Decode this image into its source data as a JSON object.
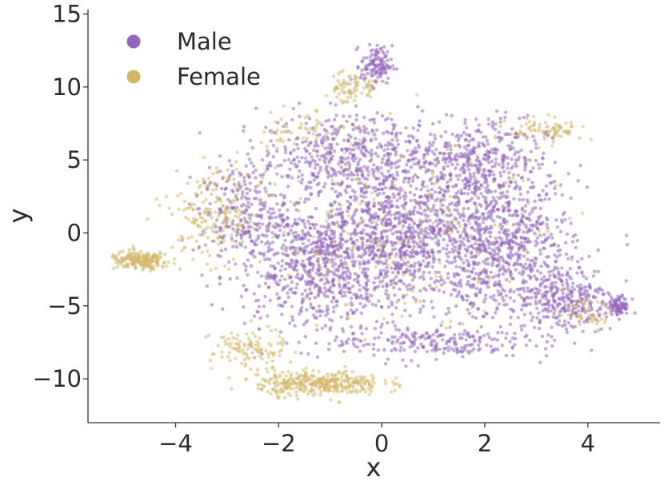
{
  "chart_data": {
    "type": "scatter",
    "title": "",
    "xlabel": "x",
    "ylabel": "y",
    "xlim": [
      -5.7,
      5.4
    ],
    "ylim": [
      -13.0,
      15.3
    ],
    "xticks": [
      -4,
      -2,
      0,
      2,
      4
    ],
    "xtick_labels": [
      "−4",
      "−2",
      "0",
      "2",
      "4"
    ],
    "yticks": [
      -10,
      -5,
      0,
      5,
      10,
      15
    ],
    "ytick_labels": [
      "−10",
      "−5",
      "0",
      "5",
      "10",
      "15"
    ],
    "grid": false,
    "legend_position": "top-left",
    "series": [
      {
        "name": "Male",
        "color": "#9467bd",
        "approx_count": 4200,
        "clusters": [
          {
            "center": [
              0.4,
              0.0
            ],
            "spread": [
              1.6,
              4.5
            ],
            "weight": 0.26
          },
          {
            "center": [
              2.4,
              -1.0
            ],
            "spread": [
              1.1,
              4.0
            ],
            "weight": 0.17
          },
          {
            "center": [
              -1.3,
              -2.0
            ],
            "spread": [
              1.3,
              3.8
            ],
            "weight": 0.17
          },
          {
            "center": [
              -0.8,
              5.5
            ],
            "spread": [
              1.3,
              2.2
            ],
            "weight": 0.09
          },
          {
            "center": [
              1.8,
              5.0
            ],
            "spread": [
              1.2,
              2.3
            ],
            "weight": 0.09
          },
          {
            "center": [
              -0.1,
              11.5
            ],
            "spread": [
              0.25,
              1.1
            ],
            "weight": 0.03
          },
          {
            "center": [
              3.6,
              -4.5
            ],
            "spread": [
              0.8,
              2.0
            ],
            "weight": 0.07
          },
          {
            "center": [
              -2.7,
              1.5
            ],
            "spread": [
              0.7,
              2.5
            ],
            "weight": 0.05
          },
          {
            "center": [
              0.9,
              -7.5
            ],
            "spread": [
              1.6,
              0.9
            ],
            "weight": 0.05
          },
          {
            "center": [
              4.6,
              -5.0
            ],
            "spread": [
              0.15,
              0.5
            ],
            "weight": 0.02
          }
        ]
      },
      {
        "name": "Female",
        "color": "#d4b86a",
        "approx_count": 1400,
        "clusters": [
          {
            "center": [
              -1.2,
              -10.3
            ],
            "spread": [
              1.0,
              0.7
            ],
            "weight": 0.25
          },
          {
            "center": [
              -4.7,
              -1.9
            ],
            "spread": [
              0.5,
              0.5
            ],
            "weight": 0.14
          },
          {
            "center": [
              -3.2,
              1.2
            ],
            "spread": [
              0.8,
              2.6
            ],
            "weight": 0.15
          },
          {
            "center": [
              -0.6,
              10.0
            ],
            "spread": [
              0.5,
              1.0
            ],
            "weight": 0.06
          },
          {
            "center": [
              3.2,
              7.0
            ],
            "spread": [
              0.6,
              0.7
            ],
            "weight": 0.06
          },
          {
            "center": [
              -2.6,
              -8.0
            ],
            "spread": [
              0.6,
              1.2
            ],
            "weight": 0.08
          },
          {
            "center": [
              0.5,
              0.0
            ],
            "spread": [
              2.2,
              4.5
            ],
            "weight": 0.18
          },
          {
            "center": [
              4.0,
              -5.5
            ],
            "spread": [
              0.5,
              0.8
            ],
            "weight": 0.04
          },
          {
            "center": [
              -1.5,
              7.0
            ],
            "spread": [
              0.8,
              1.2
            ],
            "weight": 0.04
          }
        ]
      }
    ]
  }
}
